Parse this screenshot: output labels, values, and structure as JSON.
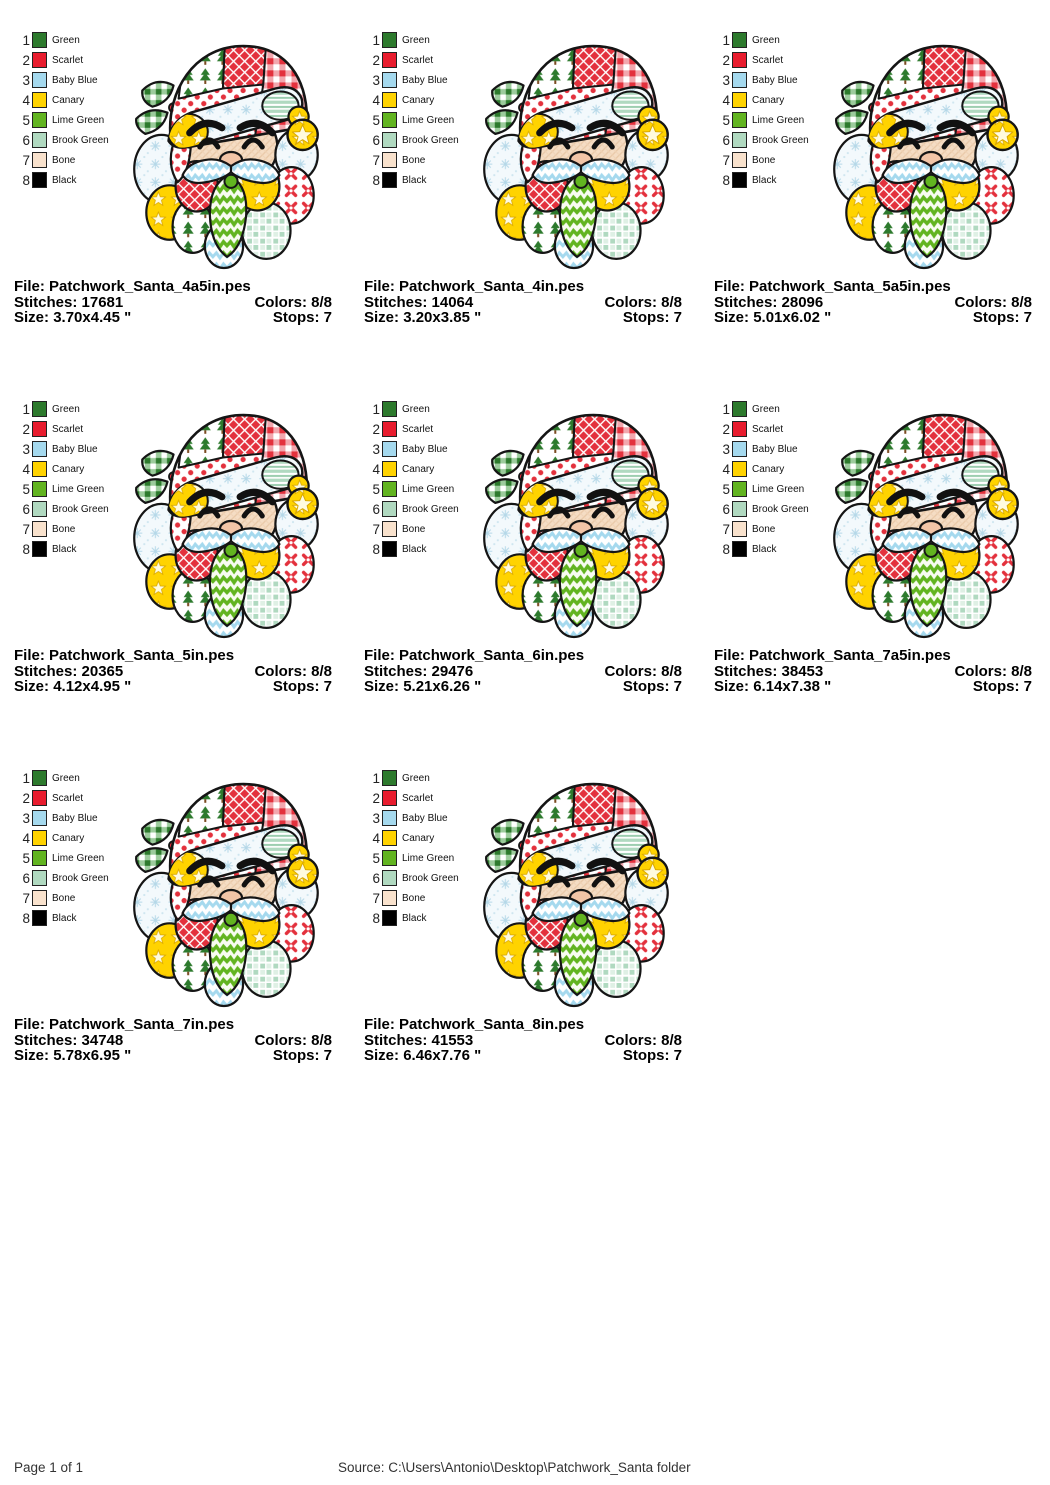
{
  "labels": {
    "file": "File:",
    "stitches": "Stitches:",
    "colors": "Colors:",
    "size": "Size:",
    "stops": "Stops:"
  },
  "legend": [
    {
      "num": "1",
      "name": "Green",
      "color": "#2d7a2d"
    },
    {
      "num": "2",
      "name": "Scarlet",
      "color": "#e81c2e"
    },
    {
      "num": "3",
      "name": "Baby Blue",
      "color": "#a5d9ee"
    },
    {
      "num": "4",
      "name": "Canary",
      "color": "#ffd300"
    },
    {
      "num": "5",
      "name": "Lime Green",
      "color": "#62b420"
    },
    {
      "num": "6",
      "name": "Brook Green",
      "color": "#b0d9c0"
    },
    {
      "num": "7",
      "name": "Bone",
      "color": "#f9e2cd"
    },
    {
      "num": "8",
      "name": "Black",
      "color": "#000000"
    }
  ],
  "cells": [
    {
      "file": "Patchwork_Santa_4a5in.pes",
      "stitches": "17681",
      "colors": "8/8",
      "size": "3.70x4.45 \"",
      "stops": "7"
    },
    {
      "file": "Patchwork_Santa_4in.pes",
      "stitches": "14064",
      "colors": "8/8",
      "size": "3.20x3.85 \"",
      "stops": "7"
    },
    {
      "file": "Patchwork_Santa_5a5in.pes",
      "stitches": "28096",
      "colors": "8/8",
      "size": "5.01x6.02 \"",
      "stops": "7"
    },
    {
      "file": "Patchwork_Santa_5in.pes",
      "stitches": "20365",
      "colors": "8/8",
      "size": "4.12x4.95 \"",
      "stops": "7"
    },
    {
      "file": "Patchwork_Santa_6in.pes",
      "stitches": "29476",
      "colors": "8/8",
      "size": "5.21x6.26 \"",
      "stops": "7"
    },
    {
      "file": "Patchwork_Santa_7a5in.pes",
      "stitches": "38453",
      "colors": "8/8",
      "size": "6.14x7.38 \"",
      "stops": "7"
    },
    {
      "file": "Patchwork_Santa_7in.pes",
      "stitches": "34748",
      "colors": "8/8",
      "size": "5.78x6.95 \"",
      "stops": "7"
    },
    {
      "file": "Patchwork_Santa_8in.pes",
      "stitches": "41553",
      "colors": "8/8",
      "size": "6.46x7.76 \"",
      "stops": "7"
    }
  ],
  "footer": {
    "page_label": "Page 1 of 1",
    "source": "Source: C:\\Users\\Antonio\\Desktop\\Patchwork_Santa folder"
  }
}
